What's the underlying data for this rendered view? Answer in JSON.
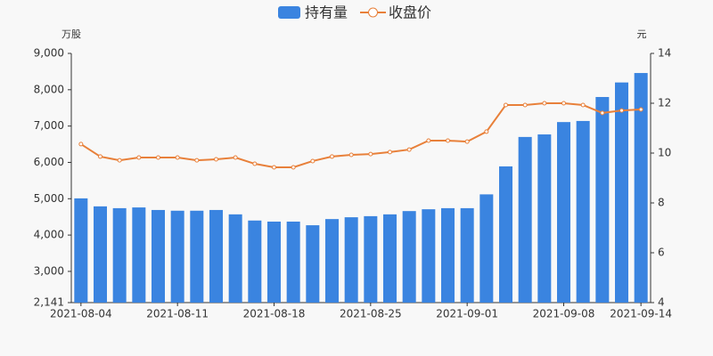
{
  "chart_data": {
    "type": "bar",
    "legend": "top",
    "categories": [
      "2021-08-04",
      null,
      null,
      null,
      null,
      "2021-08-11",
      null,
      null,
      null,
      null,
      "2021-08-18",
      null,
      null,
      null,
      null,
      "2021-08-25",
      null,
      null,
      null,
      null,
      "2021-09-01",
      null,
      null,
      null,
      null,
      "2021-09-08",
      null,
      null,
      null,
      "2021-09-14"
    ],
    "series": [
      {
        "name": "持有量",
        "type": "bar",
        "color": "#3a84e0",
        "values": [
          5010,
          4790,
          4740,
          4760,
          4690,
          4670,
          4670,
          4690,
          4570,
          4400,
          4370,
          4370,
          4270,
          4440,
          4490,
          4520,
          4570,
          4660,
          4710,
          4740,
          4740,
          5120,
          5890,
          6700,
          6770,
          7110,
          7140,
          7800,
          8200,
          8460
        ]
      },
      {
        "name": "收盘价",
        "type": "line",
        "axis": "y2",
        "color": "#e8803a",
        "values": [
          10.36,
          9.86,
          9.71,
          9.82,
          9.82,
          9.82,
          9.71,
          9.75,
          9.82,
          9.57,
          9.43,
          9.43,
          9.68,
          9.86,
          9.93,
          9.96,
          10.04,
          10.14,
          10.5,
          10.5,
          10.46,
          10.86,
          11.93,
          11.93,
          12.0,
          12.0,
          11.93,
          11.61,
          11.71,
          11.75
        ]
      }
    ],
    "y_label": "万股",
    "y2_label": "元",
    "ylim": [
      2141,
      9000
    ],
    "yticks": [
      {
        "value": 2141,
        "label": "2,141"
      },
      {
        "value": 3000,
        "label": "3,000"
      },
      {
        "value": 4000,
        "label": "4,000"
      },
      {
        "value": 5000,
        "label": "5,000"
      },
      {
        "value": 6000,
        "label": "6,000"
      },
      {
        "value": 7000,
        "label": "7,000"
      },
      {
        "value": 8000,
        "label": "8,000"
      },
      {
        "value": 9000,
        "label": "9,000"
      }
    ],
    "y2lim": [
      4,
      14
    ],
    "y2ticks": [
      4,
      6,
      8,
      10,
      12,
      14
    ]
  }
}
